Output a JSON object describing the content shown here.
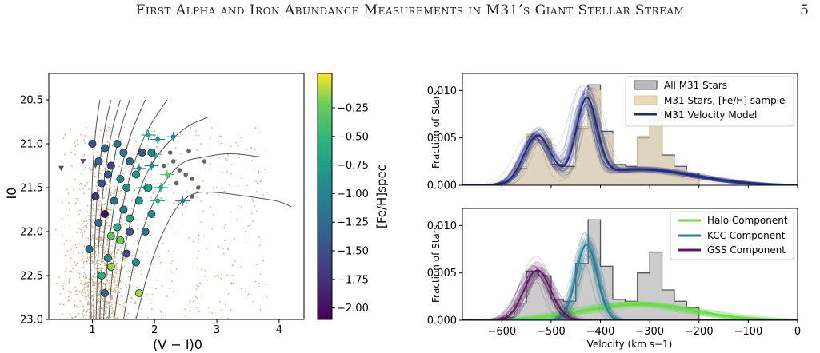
{
  "header": {
    "title": "First Alpha and Iron Abundance Measurements in M31’s Giant Stellar Stream",
    "page_number": "5"
  },
  "colors": {
    "tan": "#d2b48c",
    "navy": "#1f2a7a",
    "green": "#66dd44",
    "teal": "#2a7f95",
    "purple": "#5a1a5e",
    "gray_hist": "#999999"
  },
  "chart_data": [
    {
      "type": "scatter",
      "xlabel": "(V − I)0",
      "ylabel": "I0",
      "xlim": [
        0.3,
        4.4
      ],
      "ylim": [
        23.0,
        20.2
      ],
      "xticks": [
        "1",
        "2",
        "3",
        "4"
      ],
      "yticks": [
        "20.5",
        "21.0",
        "21.5",
        "22.0",
        "22.5",
        "23.0"
      ],
      "colorbar": {
        "label": "[Fe/H]spec",
        "range": [
          -2.1,
          0.05
        ],
        "ticks": [
          "−0.25",
          "−0.50",
          "−0.75",
          "−1.00",
          "−1.25",
          "−1.50",
          "−1.75",
          "−2.00"
        ]
      },
      "feh_sample": [
        {
          "x": 1.0,
          "y": 21.0,
          "feh": -1.5
        },
        {
          "x": 1.2,
          "y": 21.05,
          "feh": -1.3
        },
        {
          "x": 1.4,
          "y": 21.0,
          "feh": -1.2
        },
        {
          "x": 1.5,
          "y": 21.1,
          "feh": -1.1
        },
        {
          "x": 1.8,
          "y": 21.1,
          "feh": -1.4
        },
        {
          "x": 1.95,
          "y": 21.1,
          "feh": -1.0
        },
        {
          "x": 1.1,
          "y": 21.2,
          "feh": -1.3
        },
        {
          "x": 1.3,
          "y": 21.25,
          "feh": -1.6
        },
        {
          "x": 1.6,
          "y": 21.2,
          "feh": -1.2
        },
        {
          "x": 1.25,
          "y": 21.35,
          "feh": -1.4
        },
        {
          "x": 1.45,
          "y": 21.4,
          "feh": -1.0
        },
        {
          "x": 1.7,
          "y": 21.35,
          "feh": -0.8
        },
        {
          "x": 1.15,
          "y": 21.45,
          "feh": -1.5
        },
        {
          "x": 1.55,
          "y": 21.5,
          "feh": -0.9
        },
        {
          "x": 1.9,
          "y": 21.5,
          "feh": -0.7
        },
        {
          "x": 1.05,
          "y": 21.6,
          "feh": -1.7
        },
        {
          "x": 1.35,
          "y": 21.65,
          "feh": -1.2
        },
        {
          "x": 1.75,
          "y": 21.65,
          "feh": -0.8
        },
        {
          "x": 1.2,
          "y": 21.8,
          "feh": -2.05
        },
        {
          "x": 1.5,
          "y": 21.75,
          "feh": -1.1
        },
        {
          "x": 1.95,
          "y": 21.8,
          "feh": -0.9
        },
        {
          "x": 1.1,
          "y": 21.9,
          "feh": -1.3
        },
        {
          "x": 1.4,
          "y": 21.95,
          "feh": -0.6
        },
        {
          "x": 1.6,
          "y": 22.0,
          "feh": -1.4
        },
        {
          "x": 1.3,
          "y": 22.05,
          "feh": -0.3
        },
        {
          "x": 1.85,
          "y": 22.0,
          "feh": -1.2
        },
        {
          "x": 0.95,
          "y": 22.2,
          "feh": -1.2
        },
        {
          "x": 1.45,
          "y": 22.1,
          "feh": -0.2
        },
        {
          "x": 1.25,
          "y": 22.3,
          "feh": -1.0
        },
        {
          "x": 1.55,
          "y": 22.25,
          "feh": -1.5
        },
        {
          "x": 1.7,
          "y": 22.35,
          "feh": -0.9
        },
        {
          "x": 1.15,
          "y": 22.5,
          "feh": -0.6
        },
        {
          "x": 1.2,
          "y": 22.7,
          "feh": -1.3
        },
        {
          "x": 1.75,
          "y": 22.7,
          "feh": -0.1
        },
        {
          "x": 1.6,
          "y": 21.85,
          "feh": -0.7
        },
        {
          "x": 1.3,
          "y": 22.4,
          "feh": -0.15
        }
      ],
      "errbar_sample": [
        {
          "x": 1.9,
          "y": 20.9,
          "feh": -0.7
        },
        {
          "x": 2.05,
          "y": 20.95,
          "feh": -0.8
        },
        {
          "x": 2.3,
          "y": 20.92,
          "feh": -0.9
        },
        {
          "x": 2.0,
          "y": 21.12,
          "feh": -0.6
        },
        {
          "x": 2.2,
          "y": 21.35,
          "feh": -0.3
        },
        {
          "x": 2.45,
          "y": 21.65,
          "feh": -1.1
        },
        {
          "x": 2.05,
          "y": 21.65,
          "feh": -0.6
        },
        {
          "x": 1.85,
          "y": 21.5,
          "feh": -0.8
        },
        {
          "x": 2.1,
          "y": 21.5,
          "feh": -0.7
        },
        {
          "x": 1.75,
          "y": 21.28,
          "feh": -0.9
        },
        {
          "x": 1.95,
          "y": 21.25,
          "feh": -1.0
        }
      ],
      "gray_points": [
        {
          "x": 2.3,
          "y": 21.2
        },
        {
          "x": 2.4,
          "y": 21.3
        },
        {
          "x": 2.5,
          "y": 21.35
        },
        {
          "x": 2.6,
          "y": 21.4
        },
        {
          "x": 2.15,
          "y": 21.25
        },
        {
          "x": 2.55,
          "y": 21.08
        },
        {
          "x": 2.7,
          "y": 21.5
        },
        {
          "x": 2.35,
          "y": 21.45
        },
        {
          "x": 2.8,
          "y": 21.2
        },
        {
          "x": 2.25,
          "y": 21.1
        },
        {
          "x": 2.6,
          "y": 21.6
        }
      ],
      "triangles": [
        {
          "x": 0.5,
          "y": 21.28
        },
        {
          "x": 0.85,
          "y": 21.2
        },
        {
          "x": 1.05,
          "y": 21.25
        }
      ],
      "isochrones": [
        [
          [
            0.98,
            23.0
          ],
          [
            0.97,
            22.2
          ],
          [
            0.99,
            21.5
          ],
          [
            1.04,
            20.9
          ],
          [
            1.12,
            20.5
          ]
        ],
        [
          [
            1.02,
            23.0
          ],
          [
            1.03,
            22.2
          ],
          [
            1.08,
            21.5
          ],
          [
            1.17,
            20.9
          ],
          [
            1.3,
            20.5
          ]
        ],
        [
          [
            1.06,
            23.0
          ],
          [
            1.09,
            22.2
          ],
          [
            1.17,
            21.5
          ],
          [
            1.29,
            20.9
          ],
          [
            1.45,
            20.5
          ]
        ],
        [
          [
            1.12,
            23.0
          ],
          [
            1.16,
            22.2
          ],
          [
            1.27,
            21.5
          ],
          [
            1.42,
            20.9
          ],
          [
            1.6,
            20.5
          ]
        ],
        [
          [
            1.18,
            23.0
          ],
          [
            1.25,
            22.2
          ],
          [
            1.39,
            21.5
          ],
          [
            1.6,
            20.9
          ],
          [
            1.85,
            20.5
          ]
        ],
        [
          [
            1.26,
            23.0
          ],
          [
            1.35,
            22.2
          ],
          [
            1.54,
            21.5
          ],
          [
            1.82,
            20.9
          ],
          [
            2.2,
            20.5
          ]
        ],
        [
          [
            1.35,
            23.0
          ],
          [
            1.5,
            22.2
          ],
          [
            1.75,
            21.5
          ],
          [
            2.05,
            21.1
          ],
          [
            2.5,
            20.8
          ],
          [
            2.85,
            20.7
          ]
        ],
        [
          [
            1.5,
            23.0
          ],
          [
            1.7,
            22.2
          ],
          [
            2.0,
            21.6
          ],
          [
            2.4,
            21.2
          ],
          [
            2.8,
            21.15
          ],
          [
            3.2,
            21.1
          ],
          [
            3.7,
            21.15
          ]
        ],
        [
          [
            1.7,
            23.0
          ],
          [
            1.95,
            22.3
          ],
          [
            2.3,
            21.75
          ],
          [
            2.6,
            21.55
          ],
          [
            3.0,
            21.55
          ],
          [
            3.5,
            21.6
          ],
          [
            4.0,
            21.65
          ],
          [
            4.2,
            21.72
          ]
        ]
      ]
    },
    {
      "type": "area",
      "ylabel": "Fraction of Stars",
      "xlim": [
        -680,
        0
      ],
      "ylim": [
        0.0,
        0.0118
      ],
      "yticks": [
        "0.000",
        "0.005",
        "0.010"
      ],
      "legend": [
        "All M31 Stars",
        "M31 Stars, [Fe/H] sample",
        "M31 Velocity Model"
      ],
      "legend_position": "top-right",
      "bins_edges": [
        -600,
        -575,
        -550,
        -525,
        -500,
        -475,
        -450,
        -425,
        -400,
        -375,
        -350,
        -325,
        -300,
        -275,
        -250,
        -225,
        -200
      ],
      "hist_all": [
        0.0003,
        0.0018,
        0.0052,
        0.0047,
        0.0022,
        0.002,
        0.006,
        0.0106,
        0.0057,
        0.0022,
        0.002,
        0.005,
        0.0072,
        0.0032,
        0.002,
        0.0013
      ],
      "hist_feh": [
        0.0003,
        0.002,
        0.0054,
        0.0049,
        0.0019,
        0.0018,
        0.0062,
        0.01,
        0.0054,
        0.002,
        0.0018,
        0.0052,
        0.0078,
        0.003,
        0.0016,
        0.001
      ],
      "model_components": [
        {
          "mu": -528,
          "sigma": 27,
          "amp": 0.005
        },
        {
          "mu": -428,
          "sigma": 21,
          "amp": 0.0082
        },
        {
          "mu": -320,
          "sigma": 110,
          "amp": 0.0017
        }
      ]
    },
    {
      "type": "area",
      "xlabel": "Velocity (km s−1)",
      "ylabel": "Fraction of Stars",
      "xlim": [
        -680,
        0
      ],
      "ylim": [
        0.0,
        0.0118
      ],
      "xticks": [
        "−600",
        "−500",
        "−400",
        "−300",
        "−200",
        "−100",
        "0"
      ],
      "yticks": [
        "0.000",
        "0.005",
        "0.010"
      ],
      "legend": [
        "Halo Component",
        "KCC Component",
        "GSS Component"
      ],
      "legend_position": "top-right",
      "halo": {
        "mu": -320,
        "sigma": 110,
        "amp": 0.0017
      },
      "kcc": {
        "mu": -428,
        "sigma": 21,
        "amp": 0.008
      },
      "gss": {
        "mu": -528,
        "sigma": 27,
        "amp": 0.0053
      }
    }
  ]
}
